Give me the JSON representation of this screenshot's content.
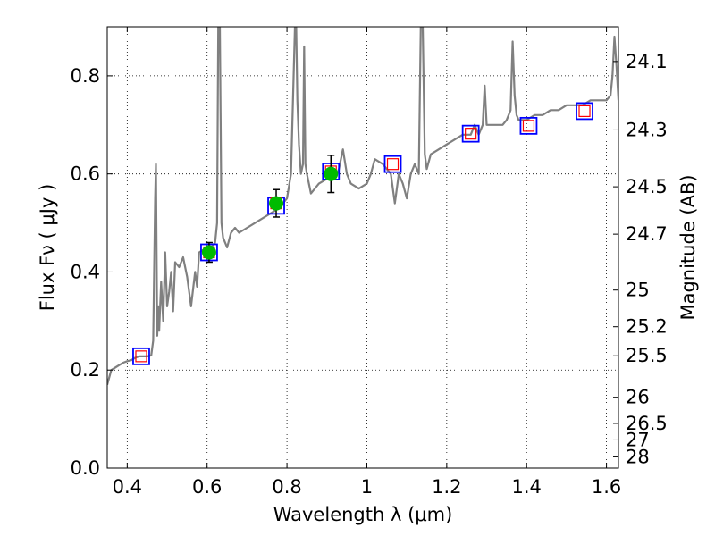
{
  "chart_data": {
    "type": "scatter",
    "title": "",
    "xlabel": "Wavelength  λ (μm)",
    "ylabel": "Flux  Fν  ( μJy )",
    "right_ylabel": "Magnitude (AB)",
    "xlim": [
      0.35,
      1.63
    ],
    "ylim": [
      0.0,
      0.9
    ],
    "grid": true,
    "x_ticks": [
      0.4,
      0.6,
      0.8,
      1.0,
      1.2,
      1.4,
      1.6
    ],
    "x_tick_labels": [
      "0.4",
      "0.6",
      "0.8",
      "1",
      "1.2",
      "1.4",
      "1.6"
    ],
    "y_ticks": [
      0.0,
      0.2,
      0.4,
      0.6,
      0.8
    ],
    "y_tick_labels": [
      "0.0",
      "0.2",
      "0.4",
      "0.6",
      "0.8"
    ],
    "right_ticks": [
      {
        "flux": 0.8292,
        "label": "24.1"
      },
      {
        "flux": 0.6897,
        "label": "24.3"
      },
      {
        "flux": 0.5737,
        "label": "24.5"
      },
      {
        "flux": 0.4771,
        "label": "24.7"
      },
      {
        "flux": 0.3631,
        "label": "25"
      },
      {
        "flux": 0.2884,
        "label": "25.2"
      },
      {
        "flux": 0.2291,
        "label": "25.5"
      },
      {
        "flux": 0.1445,
        "label": "26"
      },
      {
        "flux": 0.0912,
        "label": "26.5"
      },
      {
        "flux": 0.0575,
        "label": "27"
      },
      {
        "flux": 0.0229,
        "label": "28"
      }
    ],
    "series": [
      {
        "kind": "line",
        "color": "#808080",
        "x": [
          0.35,
          0.36,
          0.37,
          0.38,
          0.39,
          0.4,
          0.41,
          0.42,
          0.43,
          0.44,
          0.45,
          0.46,
          0.465,
          0.47,
          0.472,
          0.475,
          0.478,
          0.48,
          0.485,
          0.49,
          0.495,
          0.5,
          0.505,
          0.51,
          0.515,
          0.52,
          0.53,
          0.54,
          0.55,
          0.56,
          0.57,
          0.575,
          0.58,
          0.59,
          0.6,
          0.61,
          0.62,
          0.625,
          0.628,
          0.632,
          0.636,
          0.64,
          0.65,
          0.66,
          0.67,
          0.68,
          0.7,
          0.72,
          0.74,
          0.76,
          0.78,
          0.8,
          0.81,
          0.815,
          0.82,
          0.823,
          0.826,
          0.83,
          0.835,
          0.84,
          0.843,
          0.846,
          0.85,
          0.86,
          0.88,
          0.9,
          0.91,
          0.92,
          0.93,
          0.94,
          0.95,
          0.96,
          0.98,
          1.0,
          1.01,
          1.02,
          1.04,
          1.06,
          1.07,
          1.08,
          1.09,
          1.1,
          1.11,
          1.12,
          1.13,
          1.135,
          1.14,
          1.145,
          1.15,
          1.16,
          1.18,
          1.2,
          1.22,
          1.24,
          1.26,
          1.27,
          1.28,
          1.29,
          1.295,
          1.3,
          1.31,
          1.32,
          1.34,
          1.35,
          1.36,
          1.365,
          1.37,
          1.375,
          1.38,
          1.4,
          1.42,
          1.44,
          1.46,
          1.48,
          1.5,
          1.52,
          1.54,
          1.56,
          1.58,
          1.6,
          1.61,
          1.615,
          1.62,
          1.625,
          1.63
        ],
        "y": [
          0.17,
          0.2,
          0.205,
          0.21,
          0.215,
          0.218,
          0.22,
          0.225,
          0.228,
          0.228,
          0.228,
          0.23,
          0.26,
          0.55,
          0.62,
          0.27,
          0.33,
          0.28,
          0.38,
          0.3,
          0.44,
          0.33,
          0.36,
          0.4,
          0.32,
          0.42,
          0.41,
          0.43,
          0.39,
          0.33,
          0.4,
          0.37,
          0.44,
          0.445,
          0.44,
          0.45,
          0.46,
          0.5,
          0.9,
          0.9,
          0.5,
          0.47,
          0.45,
          0.48,
          0.49,
          0.48,
          0.49,
          0.5,
          0.51,
          0.52,
          0.53,
          0.55,
          0.6,
          0.75,
          0.9,
          0.9,
          0.75,
          0.66,
          0.6,
          0.62,
          0.86,
          0.62,
          0.6,
          0.56,
          0.58,
          0.59,
          0.6,
          0.59,
          0.61,
          0.65,
          0.6,
          0.58,
          0.57,
          0.58,
          0.6,
          0.63,
          0.62,
          0.6,
          0.54,
          0.6,
          0.58,
          0.55,
          0.6,
          0.62,
          0.6,
          0.9,
          0.9,
          0.64,
          0.61,
          0.64,
          0.65,
          0.66,
          0.67,
          0.68,
          0.68,
          0.7,
          0.68,
          0.7,
          0.78,
          0.7,
          0.7,
          0.7,
          0.7,
          0.71,
          0.73,
          0.87,
          0.76,
          0.72,
          0.71,
          0.71,
          0.72,
          0.72,
          0.73,
          0.73,
          0.74,
          0.74,
          0.74,
          0.75,
          0.75,
          0.75,
          0.76,
          0.8,
          0.88,
          0.82,
          0.75
        ]
      },
      {
        "kind": "model_photometry",
        "marker": "square",
        "edge_color": "#0000ff",
        "x": [
          0.435,
          0.605,
          0.773,
          0.91,
          1.065,
          1.26,
          1.405,
          1.545
        ],
        "y": [
          0.228,
          0.44,
          0.535,
          0.605,
          0.62,
          0.682,
          0.698,
          0.728
        ]
      },
      {
        "kind": "predicted_flux",
        "marker": "square",
        "edge_color": "#ff0000",
        "x": [
          0.435,
          0.605,
          0.773,
          0.91,
          1.065,
          1.26,
          1.405,
          1.545
        ],
        "y": [
          0.228,
          0.44,
          0.54,
          0.605,
          0.62,
          0.682,
          0.698,
          0.728
        ]
      },
      {
        "kind": "observed",
        "marker": "circle",
        "color": "#00bb00",
        "x": [
          0.605,
          0.773,
          0.91
        ],
        "y": [
          0.44,
          0.54,
          0.6
        ],
        "yerr": [
          0.02,
          0.028,
          0.038
        ]
      }
    ]
  }
}
